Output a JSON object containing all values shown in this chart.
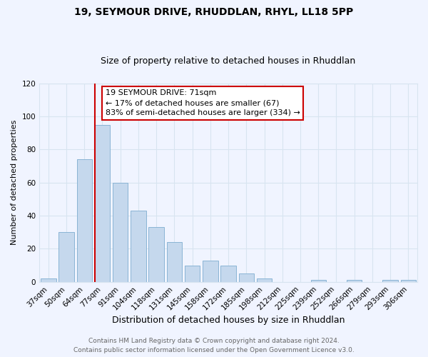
{
  "title1": "19, SEYMOUR DRIVE, RHUDDLAN, RHYL, LL18 5PP",
  "title2": "Size of property relative to detached houses in Rhuddlan",
  "xlabel": "Distribution of detached houses by size in Rhuddlan",
  "ylabel": "Number of detached properties",
  "bar_labels": [
    "37sqm",
    "50sqm",
    "64sqm",
    "77sqm",
    "91sqm",
    "104sqm",
    "118sqm",
    "131sqm",
    "145sqm",
    "158sqm",
    "172sqm",
    "185sqm",
    "198sqm",
    "212sqm",
    "225sqm",
    "239sqm",
    "252sqm",
    "266sqm",
    "279sqm",
    "293sqm",
    "306sqm"
  ],
  "bar_values": [
    2,
    30,
    74,
    95,
    60,
    43,
    33,
    24,
    10,
    13,
    10,
    5,
    2,
    0,
    0,
    1,
    0,
    1,
    0,
    1,
    1
  ],
  "bar_color": "#c5d8ed",
  "bar_edge_color": "#8ab4d4",
  "redline_bar_index": 3,
  "annotation_line1": "19 SEYMOUR DRIVE: 71sqm",
  "annotation_line2": "← 17% of detached houses are smaller (67)",
  "annotation_line3": "83% of semi-detached houses are larger (334) →",
  "redline_color": "#cc0000",
  "ylim": [
    0,
    120
  ],
  "yticks": [
    0,
    20,
    40,
    60,
    80,
    100,
    120
  ],
  "footer1": "Contains HM Land Registry data © Crown copyright and database right 2024.",
  "footer2": "Contains public sector information licensed under the Open Government Licence v3.0.",
  "background_color": "#f0f4ff",
  "grid_color": "#d8e4f0",
  "title1_fontsize": 10,
  "title2_fontsize": 9,
  "xlabel_fontsize": 9,
  "ylabel_fontsize": 8,
  "tick_fontsize": 7.5,
  "footer_fontsize": 6.5,
  "annot_fontsize": 8
}
